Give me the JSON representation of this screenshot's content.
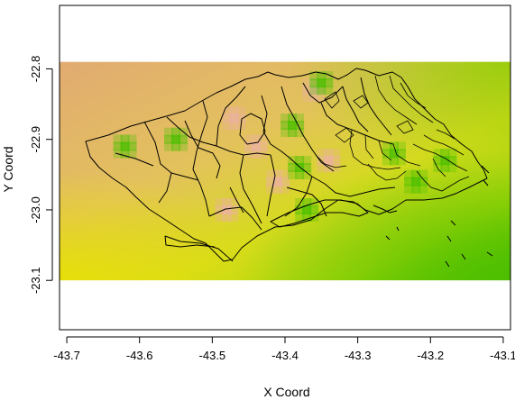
{
  "chart_data": {
    "type": "heatmap",
    "title": "",
    "xlabel": "X Coord",
    "ylabel": "Y Coord",
    "xlim": [
      -43.71,
      -43.09
    ],
    "ylim": [
      -23.17,
      -22.71
    ],
    "raster_extent": {
      "x": [
        -43.71,
        -43.09
      ],
      "y": [
        -23.1,
        -22.79
      ]
    },
    "x_ticks": [
      -43.7,
      -43.6,
      -43.5,
      -43.4,
      -43.3,
      -43.2,
      -43.1
    ],
    "y_ticks": [
      -22.8,
      -22.9,
      -23.0,
      -23.1
    ],
    "x_tick_labels": [
      "-43.7",
      "-43.6",
      "-43.5",
      "-43.4",
      "-43.3",
      "-43.2",
      "-43.1"
    ],
    "y_tick_labels": [
      "-22.8",
      "-22.9",
      "-23.0",
      "-23.1"
    ],
    "color_scale": {
      "low": "#4cbf00",
      "mid": "#e6e600",
      "high": "#ecb1a0"
    },
    "hotspots": [
      {
        "lon": -43.36,
        "lat": -22.83,
        "level": "high"
      },
      {
        "lon": -43.47,
        "lat": -22.87,
        "level": "high"
      },
      {
        "lon": -43.48,
        "lat": -23.0,
        "level": "high"
      },
      {
        "lon": -43.34,
        "lat": -22.93,
        "level": "high"
      },
      {
        "lon": -43.44,
        "lat": -22.91,
        "level": "high"
      },
      {
        "lon": -43.41,
        "lat": -22.96,
        "level": "high"
      },
      {
        "lon": -43.35,
        "lat": -22.82,
        "level": "low"
      },
      {
        "lon": -43.39,
        "lat": -22.88,
        "level": "low"
      },
      {
        "lon": -43.62,
        "lat": -22.91,
        "level": "low"
      },
      {
        "lon": -43.55,
        "lat": -22.9,
        "level": "low"
      },
      {
        "lon": -43.22,
        "lat": -22.96,
        "level": "low"
      },
      {
        "lon": -43.18,
        "lat": -22.93,
        "level": "low"
      },
      {
        "lon": -43.38,
        "lat": -22.94,
        "level": "low"
      },
      {
        "lon": -43.37,
        "lat": -23.0,
        "level": "low"
      },
      {
        "lon": -43.25,
        "lat": -22.92,
        "level": "low"
      }
    ]
  }
}
